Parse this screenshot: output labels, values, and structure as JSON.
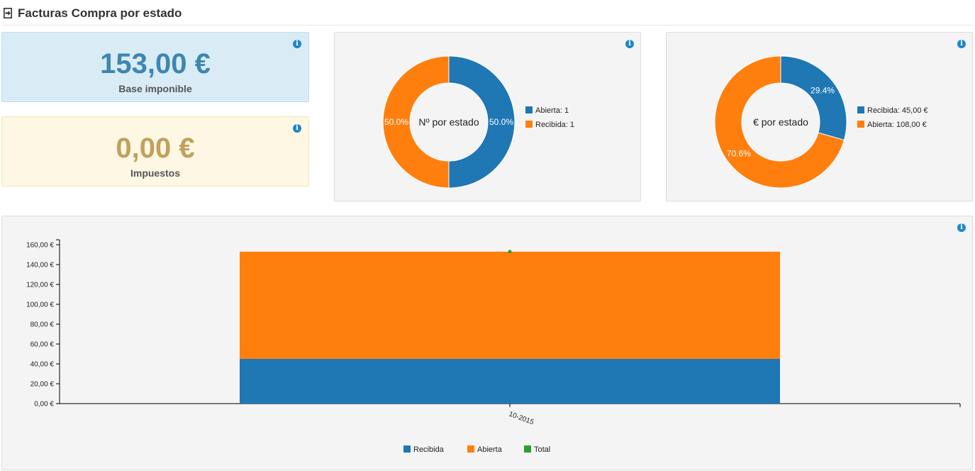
{
  "header": {
    "title": "Facturas Compra por estado",
    "icon": "sign-in-icon"
  },
  "stats": {
    "base": {
      "value": "153,00 €",
      "label": "Base imponible",
      "color": "#3d87b0"
    },
    "tax": {
      "value": "0,00 €",
      "label": "Impuestos",
      "color": "#c0a15d"
    }
  },
  "info_glyph": "i",
  "chart_data": [
    {
      "type": "pie",
      "center_label": "Nº por estado",
      "slices": [
        {
          "name": "Abierta",
          "value": 1,
          "percent_label": "50.0%",
          "legend_label": "Abierta: 1",
          "color": "#1f77b4"
        },
        {
          "name": "Recibida",
          "value": 1,
          "percent_label": "50.0%",
          "legend_label": "Recibida: 1",
          "color": "#ff7f0e"
        }
      ]
    },
    {
      "type": "pie",
      "center_label": "€ por estado",
      "slices": [
        {
          "name": "Recibida",
          "value": 45,
          "percent_label": "29.4%",
          "legend_label": "Recibida: 45,00 €",
          "color": "#1f77b4"
        },
        {
          "name": "Abierta",
          "value": 108,
          "percent_label": "70.6%",
          "legend_label": "Abierta: 108,00 €",
          "color": "#ff7f0e"
        }
      ]
    },
    {
      "type": "bar",
      "stacked": true,
      "categories": [
        "10-2015"
      ],
      "series": [
        {
          "name": "Recibida",
          "values": [
            45
          ],
          "color": "#1f77b4",
          "kind": "bar"
        },
        {
          "name": "Abierta",
          "values": [
            108
          ],
          "color": "#ff7f0e",
          "kind": "bar"
        },
        {
          "name": "Total",
          "values": [
            153
          ],
          "color": "#2ca02c",
          "kind": "point"
        }
      ],
      "ylim": [
        0,
        165
      ],
      "yticks": [
        {
          "value": 0,
          "label": "0,00 €"
        },
        {
          "value": 20,
          "label": "20,00 €"
        },
        {
          "value": 40,
          "label": "40,00 €"
        },
        {
          "value": 60,
          "label": "60,00 €"
        },
        {
          "value": 80,
          "label": "80,00 €"
        },
        {
          "value": 100,
          "label": "100,00 €"
        },
        {
          "value": 120,
          "label": "120,00 €"
        },
        {
          "value": 140,
          "label": "140,00 €"
        },
        {
          "value": 160,
          "label": "160,00 €"
        }
      ],
      "legend": [
        "Recibida",
        "Abierta",
        "Total"
      ],
      "legend_position": "bottom"
    }
  ]
}
